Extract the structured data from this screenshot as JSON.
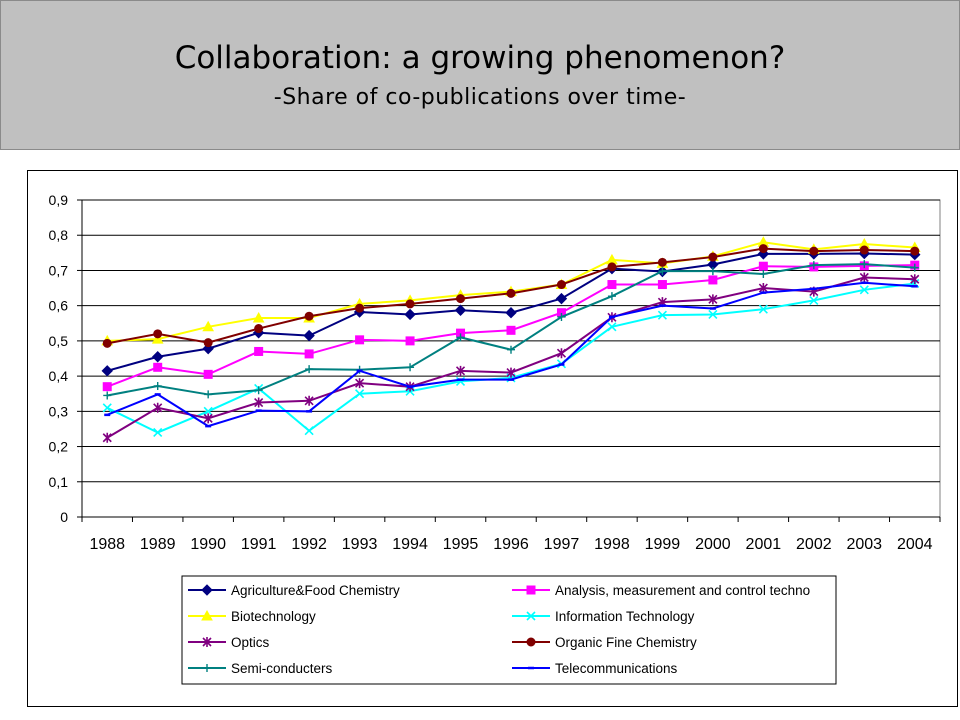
{
  "header": {
    "title": "Collaboration: a growing phenomenon?",
    "subtitle": "-Share of co-publications over time-"
  },
  "colors": {
    "header_bg": "#c0c0c0",
    "agri": "#000080",
    "analysis": "#ff00ff",
    "biotech": "#ffff00",
    "it": "#00ffff",
    "optics": "#800080",
    "organic": "#800000",
    "semi": "#008080",
    "telecom": "#0000ff"
  },
  "chart_data": {
    "type": "line",
    "title": "",
    "xlabel": "",
    "ylabel": "",
    "x": [
      "1988",
      "1989",
      "1990",
      "1991",
      "1992",
      "1993",
      "1994",
      "1995",
      "1996",
      "1997",
      "1998",
      "1999",
      "2000",
      "2001",
      "2002",
      "2003",
      "2004"
    ],
    "ylim": [
      0,
      0.9
    ],
    "yticks": [
      "0",
      "0,1",
      "0,2",
      "0,3",
      "0,4",
      "0,5",
      "0,6",
      "0,7",
      "0,8",
      "0,9"
    ],
    "grid": true,
    "legend_position": "bottom",
    "series": [
      {
        "name": "Agriculture&Food Chemistry",
        "color": "#000080",
        "marker": "diamond",
        "values": [
          0.415,
          0.455,
          0.478,
          0.523,
          0.515,
          0.582,
          0.575,
          0.587,
          0.58,
          0.62,
          0.705,
          0.697,
          0.717,
          0.747,
          0.747,
          0.748,
          0.745
        ]
      },
      {
        "name": "Analysis, measurement and control techno",
        "color": "#ff00ff",
        "marker": "square",
        "values": [
          0.37,
          0.425,
          0.405,
          0.47,
          0.463,
          0.503,
          0.5,
          0.522,
          0.53,
          0.58,
          0.66,
          0.66,
          0.673,
          0.712,
          0.71,
          0.713,
          0.715
        ]
      },
      {
        "name": "Biotechnology",
        "color": "#ffff00",
        "marker": "triangle",
        "values": [
          0.5,
          0.505,
          0.54,
          0.565,
          0.565,
          0.605,
          0.615,
          0.63,
          0.64,
          0.66,
          0.73,
          0.72,
          0.74,
          0.78,
          0.76,
          0.775,
          0.765
        ]
      },
      {
        "name": "Information Technology",
        "color": "#00ffff",
        "marker": "x",
        "values": [
          0.31,
          0.24,
          0.3,
          0.365,
          0.245,
          0.35,
          0.357,
          0.385,
          0.395,
          0.435,
          0.54,
          0.573,
          0.575,
          0.59,
          0.615,
          0.645,
          0.663
        ]
      },
      {
        "name": "Optics",
        "color": "#800080",
        "marker": "star",
        "values": [
          0.225,
          0.31,
          0.28,
          0.325,
          0.33,
          0.38,
          0.37,
          0.415,
          0.41,
          0.465,
          0.567,
          0.61,
          0.618,
          0.65,
          0.64,
          0.68,
          0.675
        ]
      },
      {
        "name": "Organic Fine Chemistry",
        "color": "#800000",
        "marker": "circle",
        "values": [
          0.493,
          0.52,
          0.495,
          0.535,
          0.57,
          0.593,
          0.605,
          0.62,
          0.635,
          0.66,
          0.71,
          0.723,
          0.738,
          0.762,
          0.755,
          0.758,
          0.755
        ]
      },
      {
        "name": "Semi-conducters",
        "color": "#008080",
        "marker": "plus",
        "values": [
          0.345,
          0.372,
          0.348,
          0.36,
          0.42,
          0.418,
          0.425,
          0.51,
          0.475,
          0.568,
          0.627,
          0.698,
          0.698,
          0.69,
          0.715,
          0.718,
          0.708
        ]
      },
      {
        "name": "Telecommunications",
        "color": "#0000ff",
        "marker": "dash",
        "values": [
          0.29,
          0.348,
          0.258,
          0.302,
          0.3,
          0.415,
          0.37,
          0.39,
          0.39,
          0.433,
          0.568,
          0.6,
          0.592,
          0.637,
          0.648,
          0.665,
          0.655
        ]
      }
    ]
  }
}
